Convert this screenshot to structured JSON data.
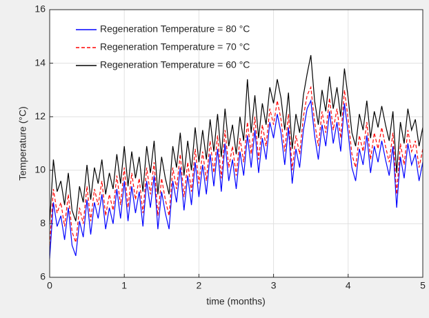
{
  "chart_data": {
    "type": "line",
    "x_label": "time (months)",
    "y_label": "Temperature (°C)",
    "xlim": [
      0,
      5
    ],
    "ylim": [
      6,
      16
    ],
    "xticks": [
      0,
      1,
      2,
      3,
      4,
      5
    ],
    "yticks": [
      6,
      8,
      10,
      12,
      14,
      16
    ],
    "grid": true,
    "legend": "upper left",
    "x": [
      0,
      0.05,
      0.1,
      0.15,
      0.2,
      0.25,
      0.3,
      0.35,
      0.4,
      0.45,
      0.5,
      0.55,
      0.6,
      0.65,
      0.7,
      0.75,
      0.8,
      0.85,
      0.9,
      0.95,
      1,
      1.05,
      1.1,
      1.15,
      1.2,
      1.25,
      1.3,
      1.35,
      1.4,
      1.45,
      1.5,
      1.55,
      1.6,
      1.65,
      1.7,
      1.75,
      1.8,
      1.85,
      1.9,
      1.95,
      2,
      2.05,
      2.1,
      2.15,
      2.2,
      2.25,
      2.3,
      2.35,
      2.4,
      2.45,
      2.5,
      2.55,
      2.6,
      2.65,
      2.7,
      2.75,
      2.8,
      2.85,
      2.9,
      2.95,
      3,
      3.05,
      3.1,
      3.15,
      3.2,
      3.25,
      3.3,
      3.35,
      3.4,
      3.45,
      3.5,
      3.55,
      3.6,
      3.65,
      3.7,
      3.75,
      3.8,
      3.85,
      3.9,
      3.95,
      4,
      4.05,
      4.1,
      4.15,
      4.2,
      4.25,
      4.3,
      4.35,
      4.4,
      4.45,
      4.5,
      4.55,
      4.6,
      4.65,
      4.7,
      4.75,
      4.8,
      4.85,
      4.9,
      4.95,
      5
    ],
    "series": [
      {
        "name": "Regeneration Temperature = 80 °C",
        "color": "#0000ff",
        "dash": false,
        "values": [
          6.7,
          8.8,
          7.9,
          8.3,
          7.4,
          8.6,
          7.2,
          6.8,
          8.1,
          7.5,
          8.9,
          7.6,
          8.8,
          8.2,
          9.1,
          7.8,
          8.6,
          8.0,
          9.3,
          8.2,
          9.6,
          8.1,
          9.4,
          8.4,
          9.2,
          7.9,
          9.6,
          8.6,
          9.8,
          7.8,
          9.2,
          8.4,
          7.8,
          9.6,
          8.8,
          10.1,
          8.5,
          9.8,
          8.7,
          10.3,
          9.0,
          10.2,
          9.1,
          10.6,
          9.4,
          10.8,
          9.2,
          11.0,
          9.6,
          10.4,
          9.3,
          10.7,
          9.8,
          11.3,
          10.1,
          11.5,
          9.9,
          11.2,
          10.4,
          11.8,
          11.2,
          12.1,
          11.4,
          10.2,
          11.6,
          9.5,
          10.8,
          10.1,
          11.5,
          12.3,
          12.6,
          11.3,
          10.4,
          11.7,
          10.9,
          12.2,
          11.0,
          11.8,
          10.7,
          12.5,
          11.4,
          10.1,
          9.6,
          10.8,
          10.2,
          11.3,
          9.9,
          10.9,
          10.3,
          11.1,
          10.4,
          9.8,
          10.9,
          8.6,
          10.5,
          9.7,
          11.0,
          10.2,
          10.6,
          9.6,
          10.3
        ]
      },
      {
        "name": "Regeneration Temperature = 70 °C",
        "color": "#ff0000",
        "dash": true,
        "values": [
          7.2,
          9.3,
          8.4,
          8.8,
          7.9,
          9.1,
          7.7,
          7.3,
          8.6,
          8.0,
          9.4,
          8.1,
          9.3,
          8.7,
          9.6,
          8.3,
          9.1,
          8.5,
          9.8,
          8.7,
          10.1,
          8.6,
          9.9,
          8.9,
          9.7,
          8.4,
          10.1,
          9.1,
          10.3,
          8.3,
          9.7,
          8.9,
          8.3,
          10.1,
          9.3,
          10.6,
          9.0,
          10.3,
          9.2,
          10.8,
          9.5,
          10.7,
          9.6,
          11.1,
          9.9,
          11.3,
          9.7,
          11.5,
          10.1,
          10.9,
          9.8,
          11.2,
          10.3,
          11.8,
          10.6,
          12.0,
          10.4,
          11.7,
          10.9,
          12.3,
          11.7,
          12.6,
          11.9,
          10.7,
          12.1,
          10.0,
          11.3,
          10.6,
          12.0,
          12.8,
          13.1,
          11.8,
          10.9,
          12.2,
          11.4,
          12.7,
          11.5,
          12.3,
          11.2,
          13.0,
          11.9,
          10.6,
          10.1,
          11.3,
          10.7,
          11.8,
          10.4,
          11.4,
          10.8,
          11.6,
          10.9,
          10.3,
          11.4,
          9.1,
          11.0,
          10.2,
          11.5,
          10.7,
          11.1,
          10.1,
          10.8
        ]
      },
      {
        "name": "Regeneration Temperature = 60 °C",
        "color": "#000000",
        "dash": false,
        "values": [
          8.0,
          10.4,
          9.2,
          9.6,
          8.7,
          9.9,
          8.5,
          8.1,
          9.4,
          8.8,
          10.2,
          8.9,
          10.1,
          9.5,
          10.4,
          9.1,
          9.9,
          9.3,
          10.6,
          9.5,
          10.9,
          9.4,
          10.7,
          9.7,
          10.5,
          9.2,
          10.9,
          9.9,
          11.1,
          9.1,
          10.5,
          9.7,
          9.1,
          10.9,
          10.1,
          11.4,
          9.8,
          11.1,
          10.0,
          11.6,
          10.3,
          11.5,
          10.4,
          11.9,
          10.7,
          12.1,
          10.5,
          12.3,
          10.9,
          11.7,
          10.6,
          12.0,
          11.1,
          13.4,
          11.4,
          12.8,
          11.2,
          12.5,
          11.7,
          13.1,
          12.5,
          13.4,
          12.7,
          11.5,
          12.9,
          10.8,
          12.1,
          11.4,
          12.8,
          13.6,
          14.3,
          12.6,
          11.7,
          13.0,
          12.2,
          13.5,
          12.3,
          13.1,
          12.0,
          13.8,
          12.7,
          11.4,
          10.9,
          12.1,
          11.5,
          12.6,
          11.2,
          12.2,
          11.6,
          12.4,
          11.7,
          11.1,
          12.2,
          9.9,
          11.8,
          11.0,
          12.3,
          11.5,
          11.9,
          10.9,
          11.6
        ]
      }
    ]
  }
}
